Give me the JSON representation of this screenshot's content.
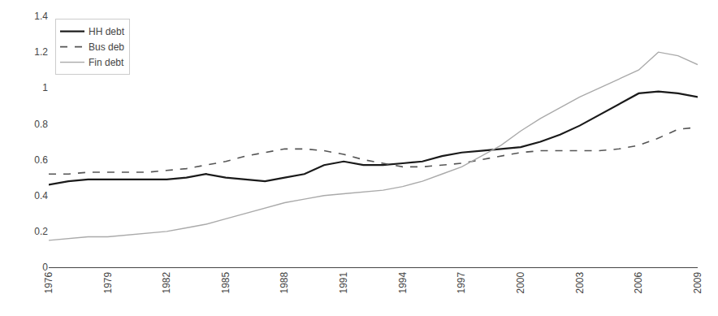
{
  "chart_data": {
    "type": "line",
    "x": [
      1976,
      1977,
      1978,
      1979,
      1980,
      1981,
      1982,
      1983,
      1984,
      1985,
      1986,
      1987,
      1988,
      1989,
      1990,
      1991,
      1992,
      1993,
      1994,
      1995,
      1996,
      1997,
      1998,
      1999,
      2000,
      2001,
      2002,
      2003,
      2004,
      2005,
      2006,
      2007,
      2008,
      2009
    ],
    "series": [
      {
        "name": "HH debt",
        "color": "#1a1a1a",
        "line_style": "solid",
        "values": [
          0.46,
          0.48,
          0.49,
          0.49,
          0.49,
          0.49,
          0.49,
          0.5,
          0.52,
          0.5,
          0.49,
          0.48,
          0.5,
          0.52,
          0.57,
          0.59,
          0.57,
          0.57,
          0.58,
          0.59,
          0.62,
          0.64,
          0.65,
          0.66,
          0.67,
          0.7,
          0.74,
          0.79,
          0.85,
          0.91,
          0.97,
          0.98,
          0.97,
          0.95
        ]
      },
      {
        "name": "Bus deb",
        "color": "#555555",
        "line_style": "dashed",
        "values": [
          0.52,
          0.52,
          0.53,
          0.53,
          0.53,
          0.53,
          0.54,
          0.55,
          0.57,
          0.59,
          0.62,
          0.64,
          0.66,
          0.66,
          0.65,
          0.63,
          0.6,
          0.58,
          0.56,
          0.56,
          0.57,
          0.58,
          0.6,
          0.62,
          0.64,
          0.65,
          0.65,
          0.65,
          0.65,
          0.66,
          0.68,
          0.72,
          0.77,
          0.78
        ]
      },
      {
        "name": "Fin debt",
        "color": "#aaaaaa",
        "line_style": "solid",
        "values": [
          0.15,
          0.16,
          0.17,
          0.17,
          0.18,
          0.19,
          0.2,
          0.22,
          0.24,
          0.27,
          0.3,
          0.33,
          0.36,
          0.38,
          0.4,
          0.41,
          0.42,
          0.43,
          0.45,
          0.48,
          0.52,
          0.56,
          0.62,
          0.68,
          0.76,
          0.83,
          0.89,
          0.95,
          1.0,
          1.05,
          1.1,
          1.2,
          1.18,
          1.13
        ]
      }
    ],
    "xlim": [
      1976,
      2009
    ],
    "xticks": [
      1976,
      1979,
      1982,
      1985,
      1988,
      1991,
      1994,
      1997,
      2000,
      2003,
      2006,
      2009
    ],
    "ylim": [
      0,
      1.4
    ],
    "yticks": [
      0,
      0.2,
      0.4,
      0.6,
      0.8,
      1,
      1.2,
      1.4
    ],
    "grid": false,
    "legend": "upper left"
  }
}
